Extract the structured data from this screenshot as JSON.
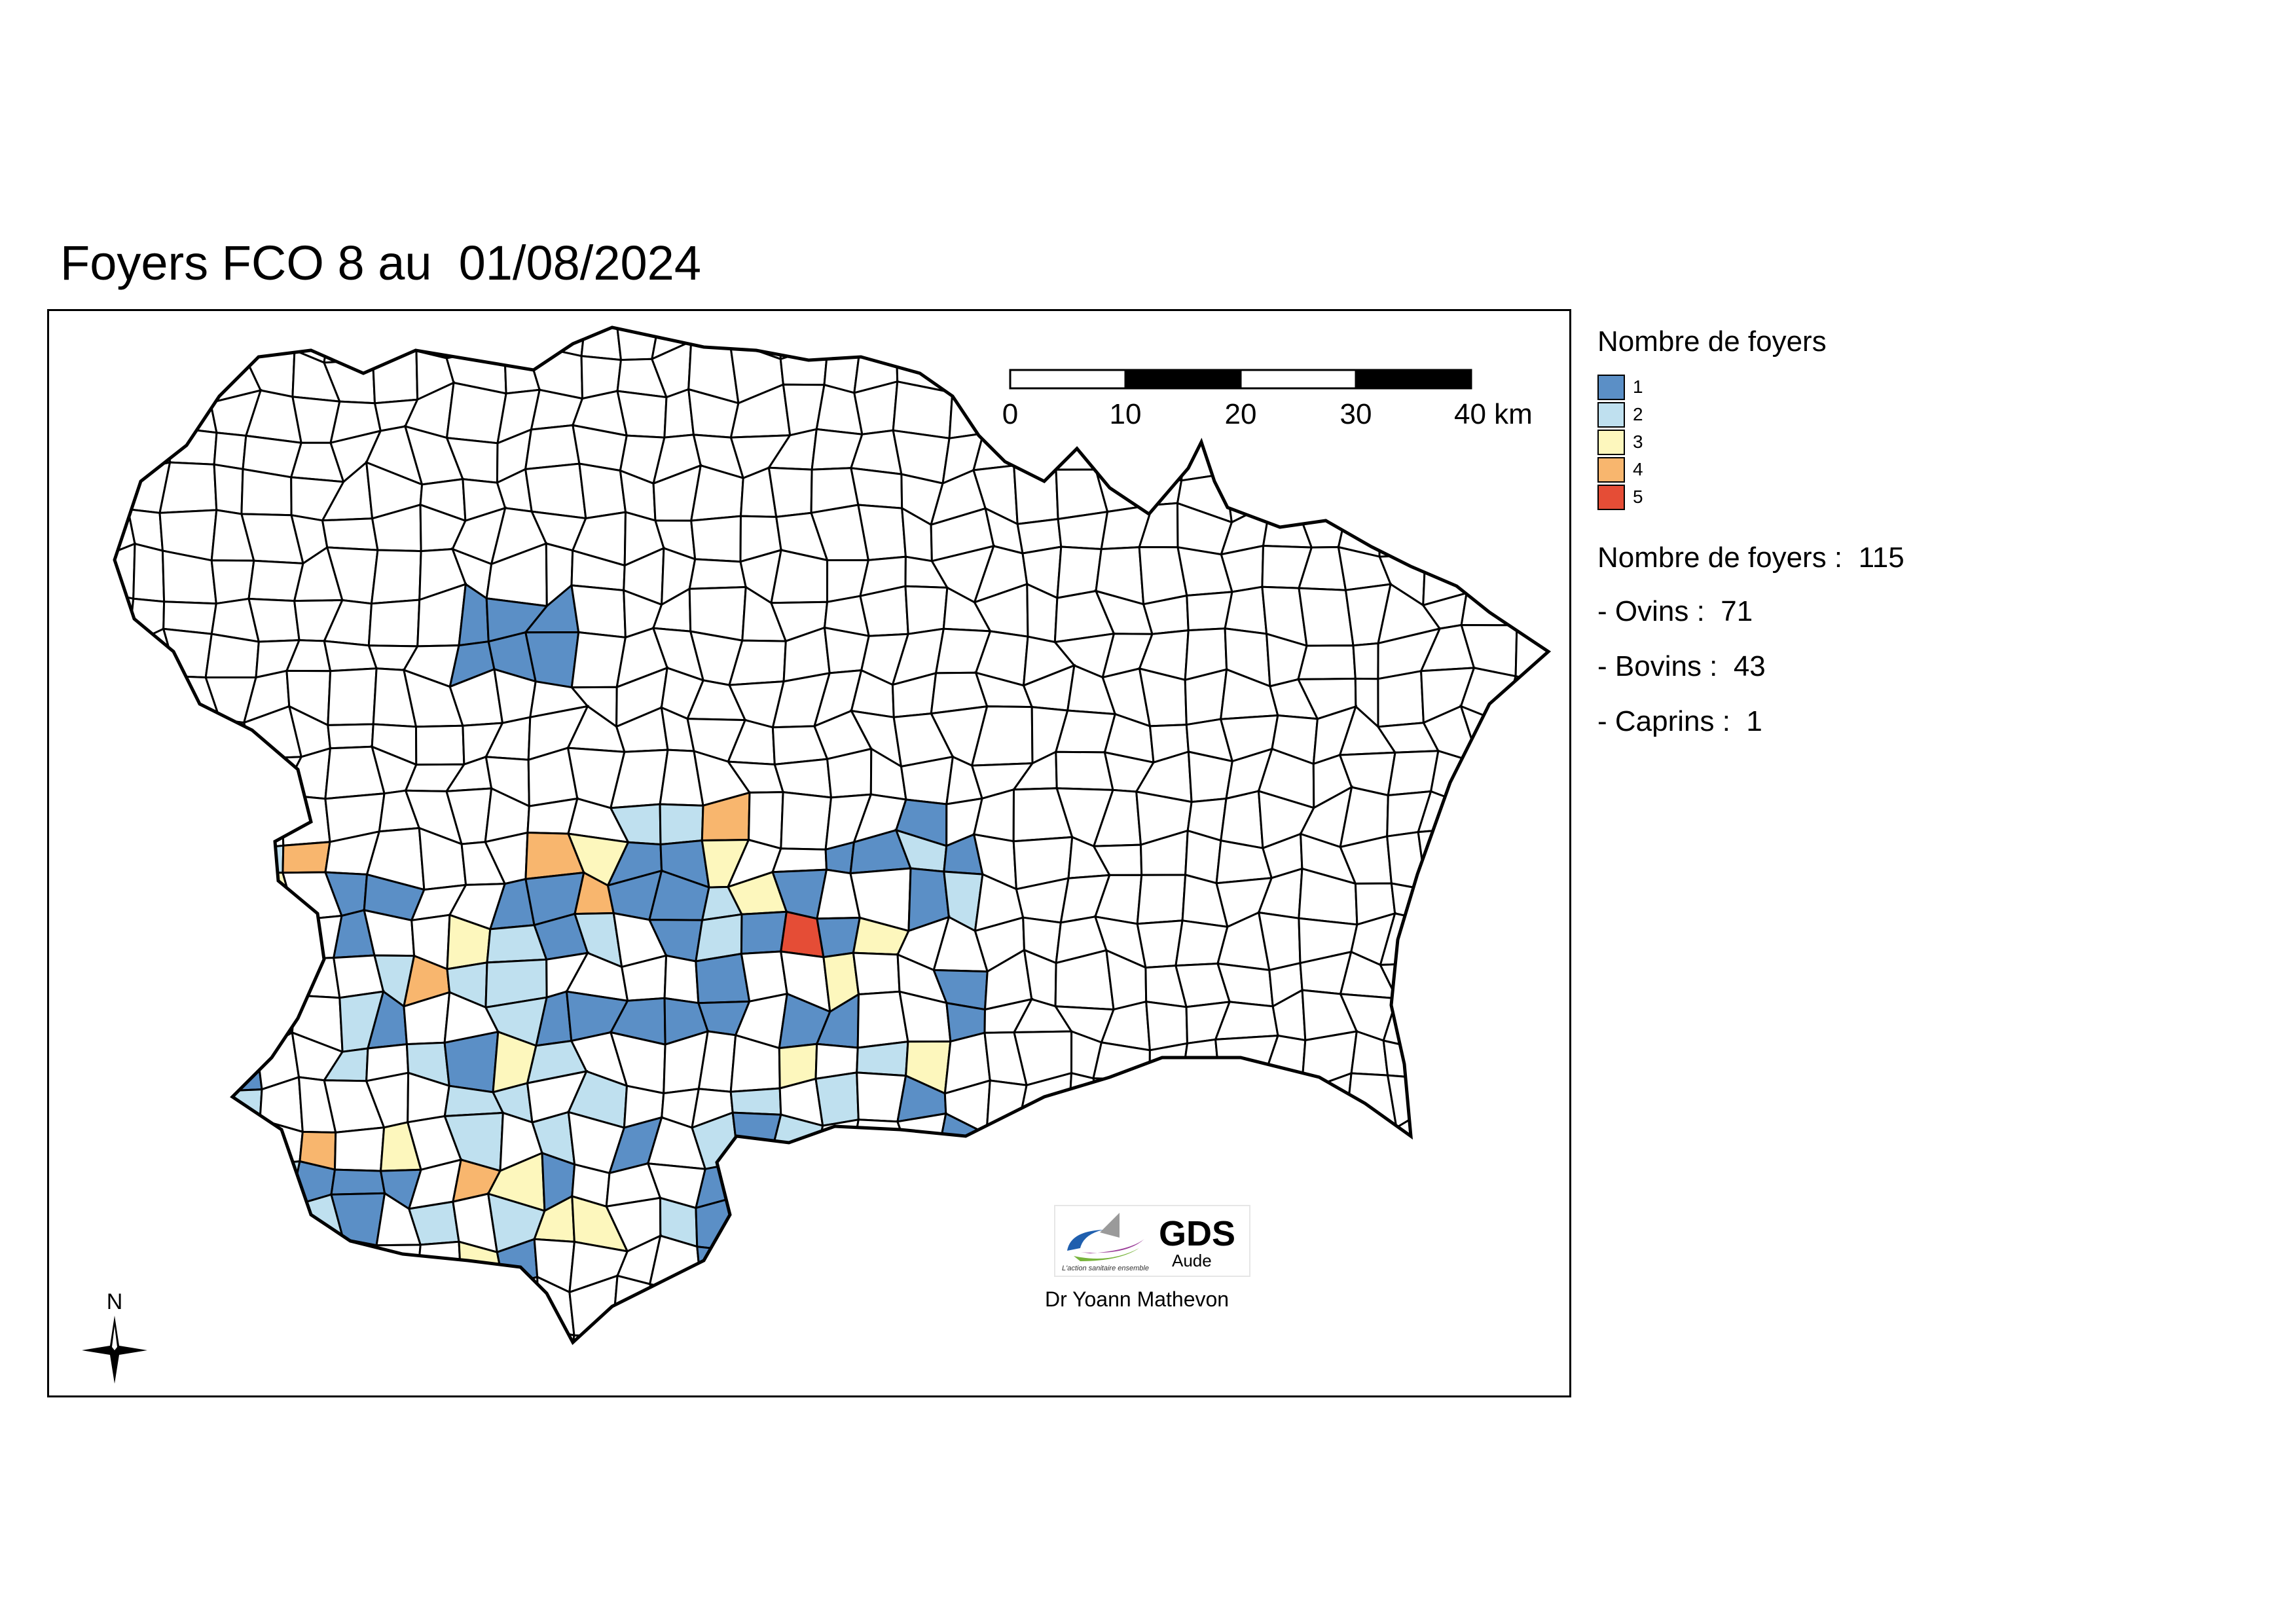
{
  "title": "Foyers FCO 8 au  01/08/2024",
  "scale_bar": {
    "ticks": [
      "0",
      "10",
      "20",
      "30"
    ],
    "last_tick": "40 km"
  },
  "legend": {
    "title": "Nombre de foyers",
    "classes": [
      {
        "label": "1",
        "color": "#5b8fc6"
      },
      {
        "label": "2",
        "color": "#bfe0ef"
      },
      {
        "label": "3",
        "color": "#fdf7bd"
      },
      {
        "label": "4",
        "color": "#f8b66e"
      },
      {
        "label": "5",
        "color": "#e54d36"
      }
    ]
  },
  "stats": {
    "total": "Nombre de foyers :  115",
    "ovins": "- Ovins :  71",
    "bovins": "- Bovins :  43",
    "caprins": "- Caprins :  1"
  },
  "logo": {
    "name": "GDS",
    "sub": "Aude",
    "tagline": "L'action sanitaire ensemble"
  },
  "credit": "Dr Yoann Mathevon",
  "north_label": "N",
  "colors": {
    "border": "#000000",
    "empty": "#ffffff"
  }
}
